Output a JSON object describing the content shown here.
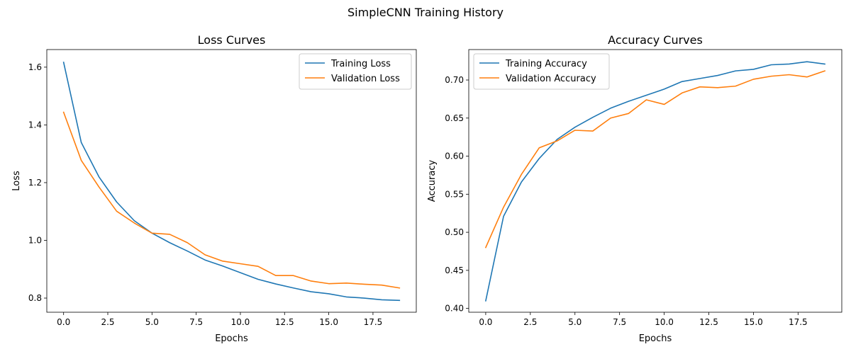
{
  "figure": {
    "suptitle": "SimpleCNN Training History"
  },
  "chart_data": [
    {
      "type": "line",
      "title": "Loss Curves",
      "xlabel": "Epochs",
      "ylabel": "Loss",
      "xlim": [
        -0.95,
        19.95
      ],
      "ylim": [
        0.751,
        1.661
      ],
      "xticks": [
        0.0,
        2.5,
        5.0,
        7.5,
        10.0,
        12.5,
        15.0,
        17.5
      ],
      "xtick_labels": [
        "0.0",
        "2.5",
        "5.0",
        "7.5",
        "10.0",
        "12.5",
        "15.0",
        "17.5"
      ],
      "yticks": [
        0.8,
        1.0,
        1.2,
        1.4,
        1.6
      ],
      "ytick_labels": [
        "0.8",
        "1.0",
        "1.2",
        "1.4",
        "1.6"
      ],
      "grid": false,
      "legend_position": "upper right",
      "x": [
        0,
        1,
        2,
        3,
        4,
        5,
        6,
        7,
        8,
        9,
        10,
        11,
        12,
        13,
        14,
        15,
        16,
        17,
        18,
        19
      ],
      "series": [
        {
          "name": "Training Loss",
          "color": "#1f77b4",
          "values": [
            1.617,
            1.339,
            1.22,
            1.133,
            1.068,
            1.025,
            0.992,
            0.963,
            0.932,
            0.911,
            0.888,
            0.865,
            0.849,
            0.835,
            0.822,
            0.815,
            0.804,
            0.8,
            0.794,
            0.792
          ]
        },
        {
          "name": "Validation Loss",
          "color": "#ff7f0e",
          "values": [
            1.444,
            1.277,
            1.185,
            1.101,
            1.06,
            1.025,
            1.021,
            0.992,
            0.95,
            0.928,
            0.919,
            0.91,
            0.878,
            0.878,
            0.859,
            0.85,
            0.852,
            0.848,
            0.845,
            0.835
          ]
        }
      ]
    },
    {
      "type": "line",
      "title": "Accuracy Curves",
      "xlabel": "Epochs",
      "ylabel": "Accuracy",
      "xlim": [
        -0.95,
        19.95
      ],
      "ylim": [
        0.395,
        0.74
      ],
      "xticks": [
        0.0,
        2.5,
        5.0,
        7.5,
        10.0,
        12.5,
        15.0,
        17.5
      ],
      "xtick_labels": [
        "0.0",
        "2.5",
        "5.0",
        "7.5",
        "10.0",
        "12.5",
        "15.0",
        "17.5"
      ],
      "yticks": [
        0.4,
        0.45,
        0.5,
        0.55,
        0.6,
        0.65,
        0.7
      ],
      "ytick_labels": [
        "0.40",
        "0.45",
        "0.50",
        "0.55",
        "0.60",
        "0.65",
        "0.70"
      ],
      "grid": false,
      "legend_position": "upper left",
      "x": [
        0,
        1,
        2,
        3,
        4,
        5,
        6,
        7,
        8,
        9,
        10,
        11,
        12,
        13,
        14,
        15,
        16,
        17,
        18,
        19
      ],
      "series": [
        {
          "name": "Training Accuracy",
          "color": "#1f77b4",
          "values": [
            0.41,
            0.521,
            0.566,
            0.597,
            0.622,
            0.638,
            0.651,
            0.663,
            0.672,
            0.68,
            0.688,
            0.698,
            0.702,
            0.706,
            0.712,
            0.714,
            0.72,
            0.721,
            0.724,
            0.721
          ]
        },
        {
          "name": "Validation Accuracy",
          "color": "#ff7f0e",
          "values": [
            0.48,
            0.533,
            0.576,
            0.611,
            0.62,
            0.634,
            0.633,
            0.65,
            0.656,
            0.674,
            0.668,
            0.683,
            0.691,
            0.69,
            0.692,
            0.701,
            0.705,
            0.707,
            0.704,
            0.712
          ]
        }
      ]
    }
  ]
}
